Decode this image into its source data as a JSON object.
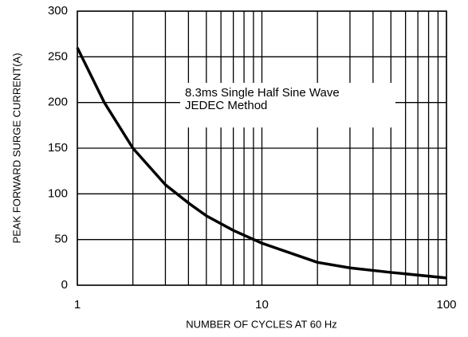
{
  "chart_data": {
    "type": "line",
    "xlabel": "NUMBER OF CYCLES AT 60 Hz",
    "ylabel": "PEAK FORWARD SURGE CURRENT(A)",
    "annotations": [
      "8.3ms Single Half Sine Wave",
      "JEDEC Method"
    ],
    "x": [
      1,
      1.4,
      2,
      3,
      4,
      5,
      7,
      10,
      20,
      30,
      50,
      100
    ],
    "series": [
      {
        "name": "Peak Forward Surge Current",
        "color": "#000000",
        "values": [
          260,
          200,
          150,
          110,
          90,
          76,
          60,
          46,
          25,
          19,
          14,
          8
        ]
      }
    ],
    "xscale": "log",
    "xlim": [
      1,
      100
    ],
    "xticks": [
      1,
      10,
      100
    ],
    "xgrid": [
      1,
      2,
      3,
      4,
      5,
      6,
      7,
      8,
      9,
      10,
      20,
      30,
      40,
      50,
      60,
      70,
      80,
      90,
      100
    ],
    "ylim": [
      0,
      300
    ],
    "yticks": [
      0,
      50,
      100,
      150,
      200,
      250,
      300
    ],
    "grid": true
  }
}
